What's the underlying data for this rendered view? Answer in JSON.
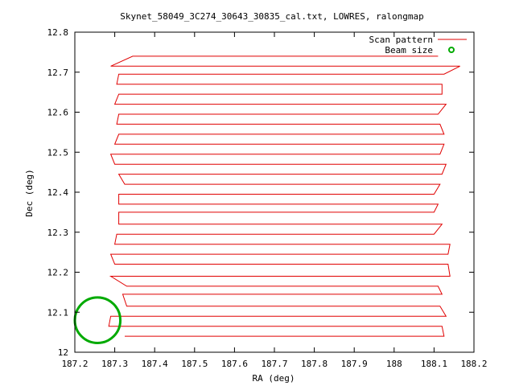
{
  "chart_data": {
    "type": "line",
    "title": "Skynet_58049_3C274_30643_30835_cal.txt, LOWRES, ralongmap",
    "xlabel": "RA (deg)",
    "ylabel": "Dec (deg)",
    "xlim": [
      187.2,
      188.2
    ],
    "ylim": [
      12.0,
      12.8
    ],
    "x_ticks": [
      "187.2",
      "187.3",
      "187.4",
      "187.5",
      "187.6",
      "187.7",
      "187.8",
      "187.9",
      "188",
      "188.1",
      "188.2"
    ],
    "y_ticks": [
      "12",
      "12.1",
      "12.2",
      "12.3",
      "12.4",
      "12.5",
      "12.6",
      "12.7",
      "12.8"
    ],
    "grid": false,
    "legend_position": "top-right",
    "series": [
      {
        "name": "Scan pattern",
        "color": "#e00000",
        "style": "line",
        "scan_rows": [
          {
            "dec": 12.04,
            "ra_start": 187.325,
            "ra_end": 188.125
          },
          {
            "dec": 12.065,
            "ra_start": 187.285,
            "ra_end": 188.12
          },
          {
            "dec": 12.09,
            "ra_start": 187.29,
            "ra_end": 188.13
          },
          {
            "dec": 12.115,
            "ra_start": 187.33,
            "ra_end": 188.115
          },
          {
            "dec": 12.145,
            "ra_start": 187.32,
            "ra_end": 188.12
          },
          {
            "dec": 12.165,
            "ra_start": 187.33,
            "ra_end": 188.11
          },
          {
            "dec": 12.19,
            "ra_start": 187.29,
            "ra_end": 188.14
          },
          {
            "dec": 12.22,
            "ra_start": 187.3,
            "ra_end": 188.135
          },
          {
            "dec": 12.245,
            "ra_start": 187.29,
            "ra_end": 188.135
          },
          {
            "dec": 12.27,
            "ra_start": 187.3,
            "ra_end": 188.14
          },
          {
            "dec": 12.295,
            "ra_start": 187.305,
            "ra_end": 188.1
          },
          {
            "dec": 12.32,
            "ra_start": 187.31,
            "ra_end": 188.12
          },
          {
            "dec": 12.35,
            "ra_start": 187.31,
            "ra_end": 188.1
          },
          {
            "dec": 12.37,
            "ra_start": 187.31,
            "ra_end": 188.11
          },
          {
            "dec": 12.395,
            "ra_start": 187.31,
            "ra_end": 188.1
          },
          {
            "dec": 12.42,
            "ra_start": 187.325,
            "ra_end": 188.115
          },
          {
            "dec": 12.445,
            "ra_start": 187.31,
            "ra_end": 188.12
          },
          {
            "dec": 12.47,
            "ra_start": 187.3,
            "ra_end": 188.13
          },
          {
            "dec": 12.495,
            "ra_start": 187.29,
            "ra_end": 188.115
          },
          {
            "dec": 12.52,
            "ra_start": 187.3,
            "ra_end": 188.125
          },
          {
            "dec": 12.545,
            "ra_start": 187.31,
            "ra_end": 188.125
          },
          {
            "dec": 12.57,
            "ra_start": 187.305,
            "ra_end": 188.115
          },
          {
            "dec": 12.595,
            "ra_start": 187.31,
            "ra_end": 188.11
          },
          {
            "dec": 12.62,
            "ra_start": 187.3,
            "ra_end": 188.13
          },
          {
            "dec": 12.645,
            "ra_start": 187.31,
            "ra_end": 188.12
          },
          {
            "dec": 12.67,
            "ra_start": 187.305,
            "ra_end": 188.12
          },
          {
            "dec": 12.695,
            "ra_start": 187.31,
            "ra_end": 188.125
          },
          {
            "dec": 12.715,
            "ra_start": 187.29,
            "ra_end": 188.165
          },
          {
            "dec": 12.74,
            "ra_start": 187.345,
            "ra_end": 188.11
          }
        ]
      },
      {
        "name": "Beam size",
        "color": "#00aa00",
        "style": "circle",
        "center": [
          187.257,
          12.08
        ],
        "radius_deg": 0.057
      }
    ]
  }
}
